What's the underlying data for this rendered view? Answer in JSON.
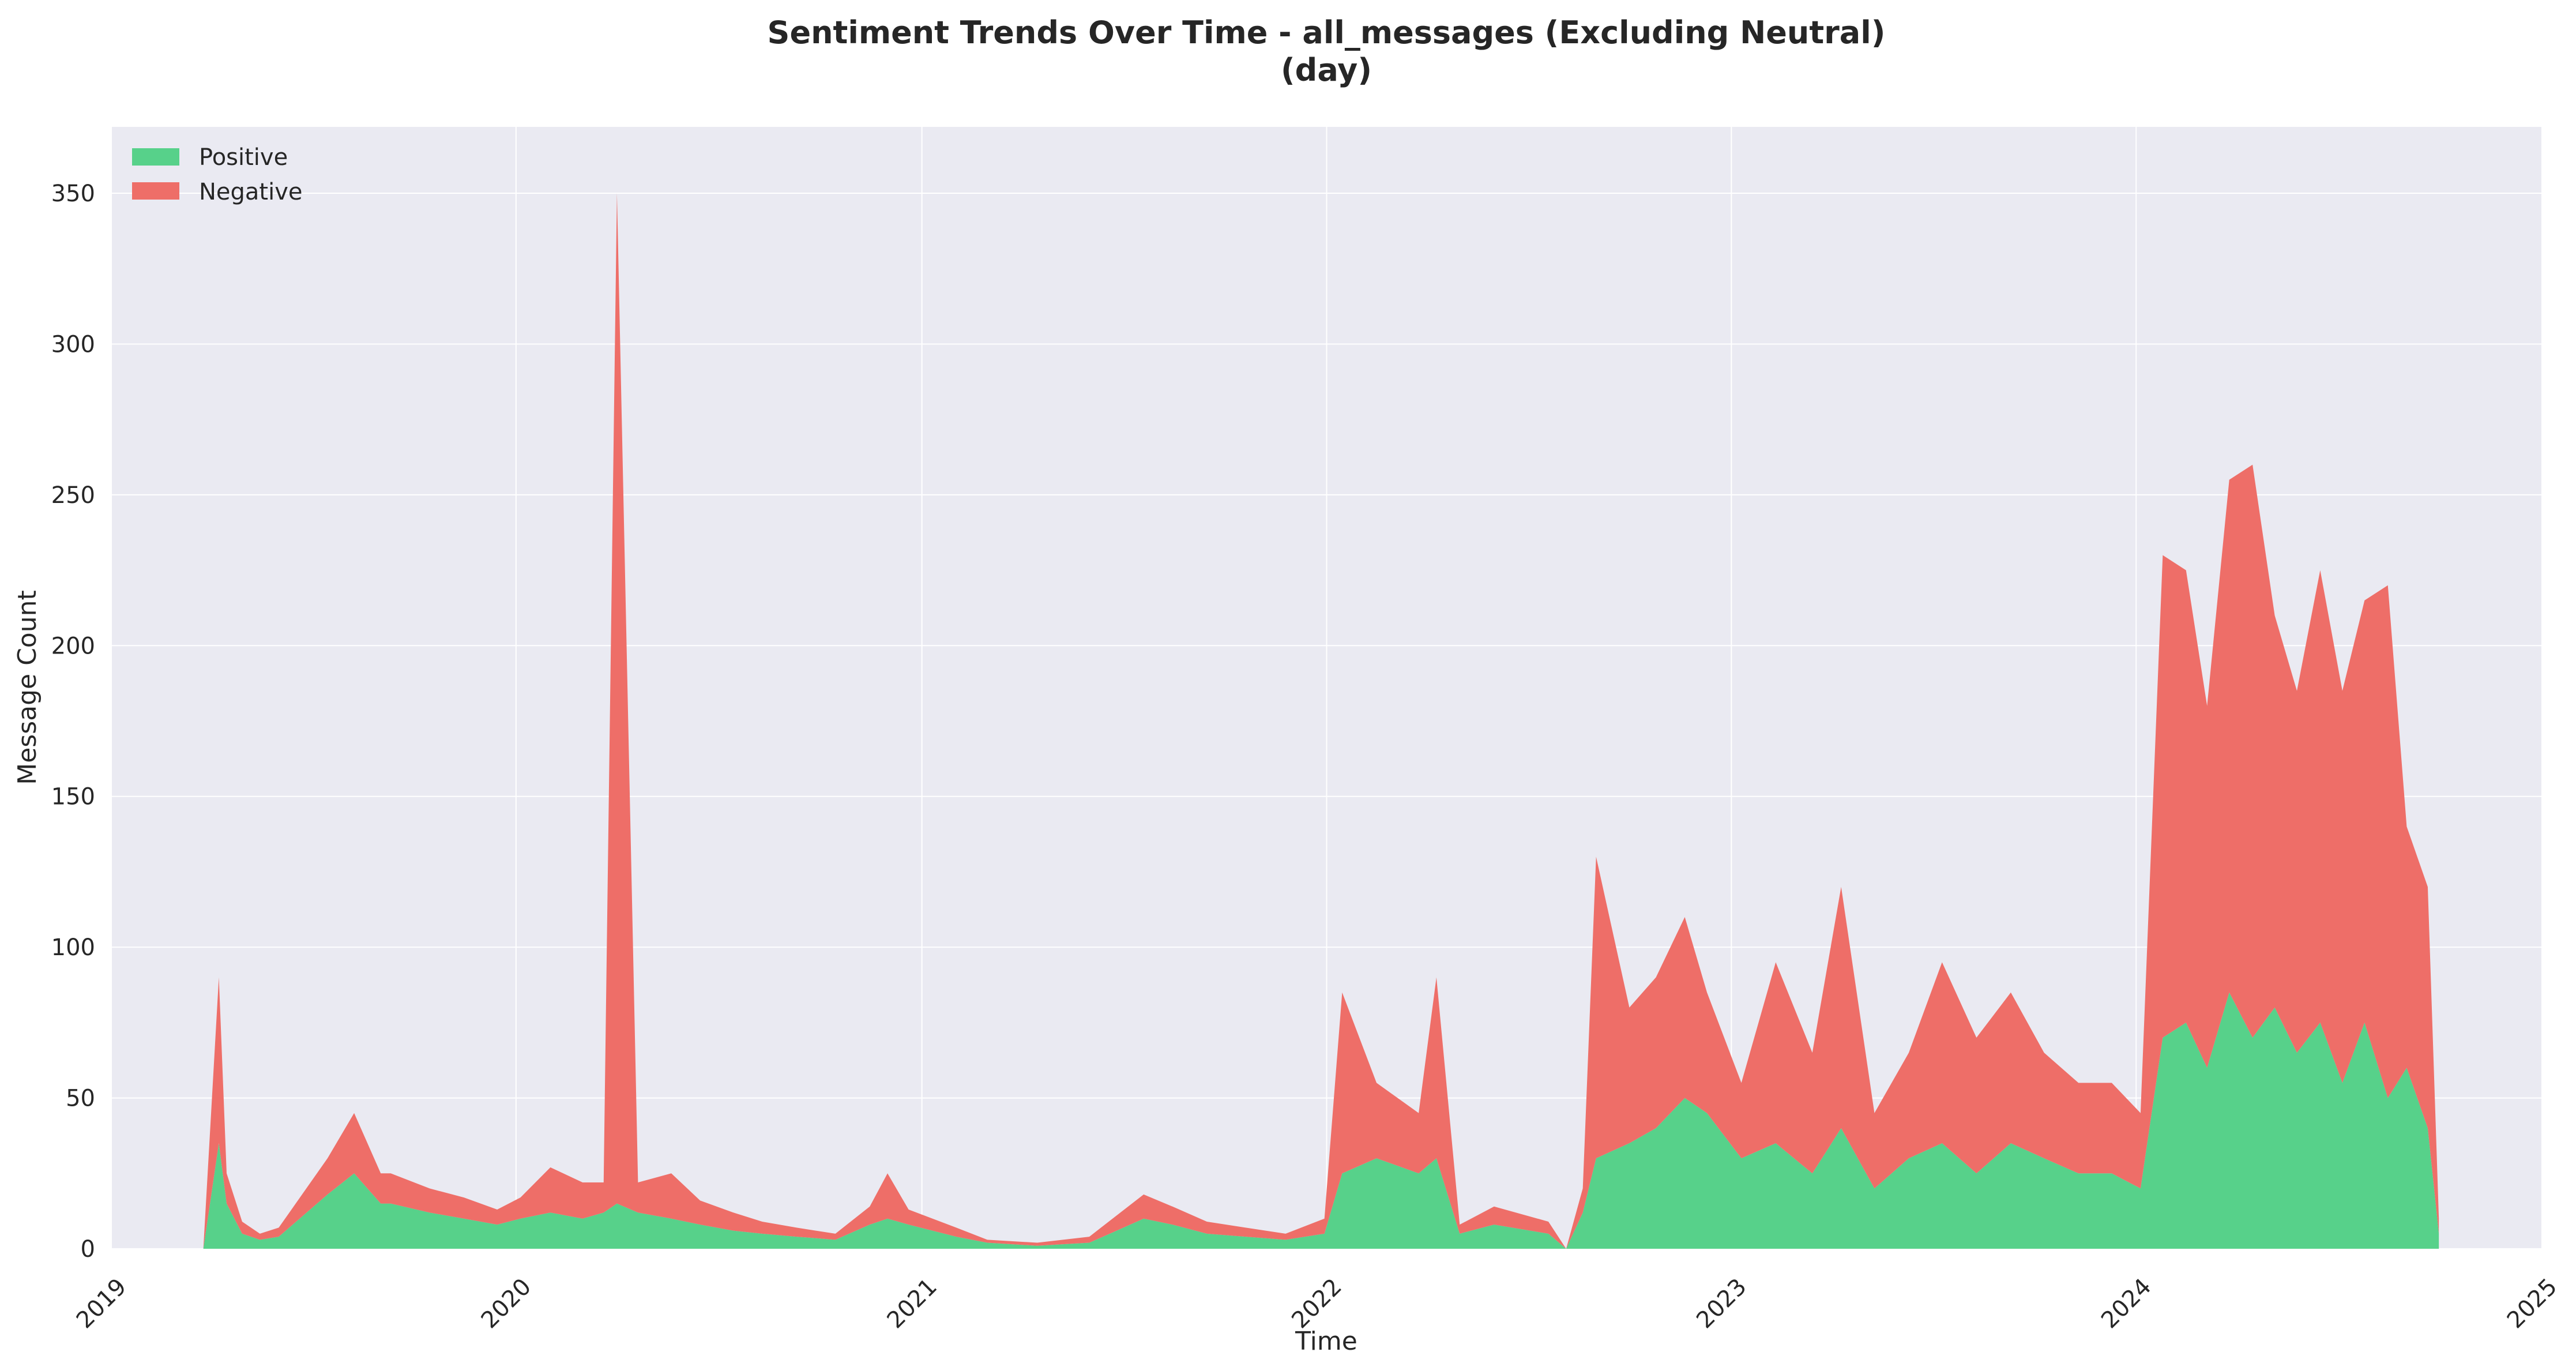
{
  "chart_data": {
    "type": "area",
    "stacked": true,
    "title": "Sentiment Trends Over Time - all_messages (Excluding Neutral)",
    "subtitle": "(day)",
    "xlabel": "Time",
    "ylabel": "Message Count",
    "xlim": [
      "2019-01-01",
      "2025-01-01"
    ],
    "ylim": [
      0,
      372
    ],
    "x_ticks": [
      "2019",
      "2020",
      "2021",
      "2022",
      "2023",
      "2024",
      "2025"
    ],
    "y_ticks": [
      0,
      50,
      100,
      150,
      200,
      250,
      300,
      350
    ],
    "grid": true,
    "legend_position": "top-left",
    "colors": {
      "Positive": "#57d18a",
      "Negative": "#ee6e68",
      "background": "#eaeaf2",
      "grid": "#ffffff"
    },
    "x": [
      "2019-03-25",
      "2019-04-08",
      "2019-04-15",
      "2019-04-29",
      "2019-05-15",
      "2019-06-01",
      "2019-07-15",
      "2019-08-08",
      "2019-09-01",
      "2019-09-10",
      "2019-10-15",
      "2019-11-15",
      "2019-12-15",
      "2020-01-05",
      "2020-02-01",
      "2020-03-01",
      "2020-03-20",
      "2020-04-01",
      "2020-04-20",
      "2020-05-20",
      "2020-06-15",
      "2020-07-15",
      "2020-08-10",
      "2020-09-10",
      "2020-10-15",
      "2020-11-15",
      "2020-12-01",
      "2020-12-20",
      "2021-02-01",
      "2021-03-01",
      "2021-04-15",
      "2021-06-01",
      "2021-07-20",
      "2021-08-15",
      "2021-09-15",
      "2021-10-20",
      "2021-11-25",
      "2021-12-30",
      "2022-01-15",
      "2022-02-15",
      "2022-03-25",
      "2022-04-10",
      "2022-05-01",
      "2022-06-01",
      "2022-07-20",
      "2022-08-05",
      "2022-08-20",
      "2022-09-01",
      "2022-10-01",
      "2022-10-25",
      "2022-11-20",
      "2022-12-10",
      "2023-01-10",
      "2023-02-10",
      "2023-03-15",
      "2023-04-10",
      "2023-05-10",
      "2023-06-10",
      "2023-07-10",
      "2023-08-10",
      "2023-09-10",
      "2023-10-10",
      "2023-11-10",
      "2023-12-10",
      "2024-01-05",
      "2024-01-25",
      "2024-02-15",
      "2024-03-05",
      "2024-03-25",
      "2024-04-15",
      "2024-05-05",
      "2024-05-25",
      "2024-06-15",
      "2024-07-05",
      "2024-07-25",
      "2024-08-15",
      "2024-09-01",
      "2024-09-20",
      "2024-09-30"
    ],
    "series": [
      {
        "name": "Positive",
        "values": [
          0,
          35,
          15,
          5,
          3,
          4,
          18,
          25,
          15,
          15,
          12,
          10,
          8,
          10,
          12,
          10,
          12,
          15,
          12,
          10,
          8,
          6,
          5,
          4,
          3,
          8,
          10,
          8,
          4,
          2,
          1,
          2,
          10,
          8,
          5,
          4,
          3,
          5,
          25,
          30,
          25,
          30,
          5,
          8,
          5,
          0,
          12,
          30,
          35,
          40,
          50,
          45,
          30,
          35,
          25,
          40,
          20,
          30,
          35,
          25,
          35,
          30,
          25,
          25,
          20,
          70,
          75,
          60,
          85,
          70,
          80,
          65,
          75,
          55,
          75,
          50,
          60,
          40,
          5
        ]
      },
      {
        "name": "Negative",
        "values": [
          0,
          55,
          10,
          4,
          2,
          3,
          12,
          20,
          10,
          10,
          8,
          7,
          5,
          7,
          15,
          12,
          10,
          335,
          10,
          15,
          8,
          6,
          4,
          3,
          2,
          6,
          15,
          5,
          3,
          1,
          1,
          2,
          8,
          6,
          4,
          3,
          2,
          5,
          60,
          25,
          20,
          60,
          3,
          6,
          4,
          0,
          8,
          100,
          45,
          50,
          60,
          40,
          25,
          60,
          40,
          80,
          25,
          35,
          60,
          45,
          50,
          35,
          30,
          30,
          25,
          160,
          150,
          120,
          170,
          190,
          130,
          120,
          150,
          130,
          140,
          170,
          80,
          80,
          5
        ]
      }
    ]
  }
}
